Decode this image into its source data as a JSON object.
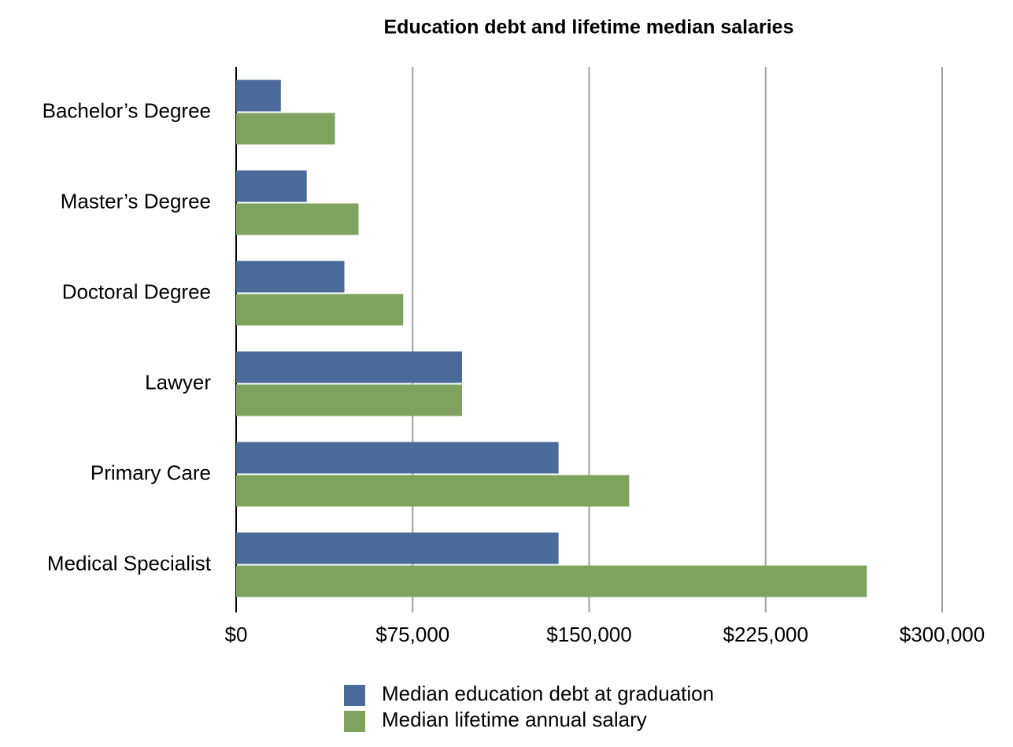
{
  "chart_data": {
    "type": "bar",
    "orientation": "horizontal",
    "title": "Education debt and lifetime median salaries",
    "categories": [
      "Bachelor’s Degree",
      "Master’s Degree",
      "Doctoral Degree",
      "Lawyer",
      "Primary Care",
      "Medical Specialist"
    ],
    "series": [
      {
        "name": "Median education debt at graduation",
        "color": "#4a6a99",
        "values": [
          19000,
          30000,
          46000,
          96000,
          137000,
          137000
        ]
      },
      {
        "name": "Median lifetime annual salary",
        "color": "#7fa35f",
        "values": [
          42000,
          52000,
          71000,
          96000,
          167000,
          268000
        ]
      }
    ],
    "xlim": [
      0,
      300000
    ],
    "xticks": [
      {
        "value": 0,
        "label": "$0"
      },
      {
        "value": 75000,
        "label": "$75,000"
      },
      {
        "value": 150000,
        "label": "$150,000"
      },
      {
        "value": 225000,
        "label": "$225,000"
      },
      {
        "value": 300000,
        "label": "$300,000"
      }
    ],
    "grid": true,
    "legend": "bottom"
  }
}
